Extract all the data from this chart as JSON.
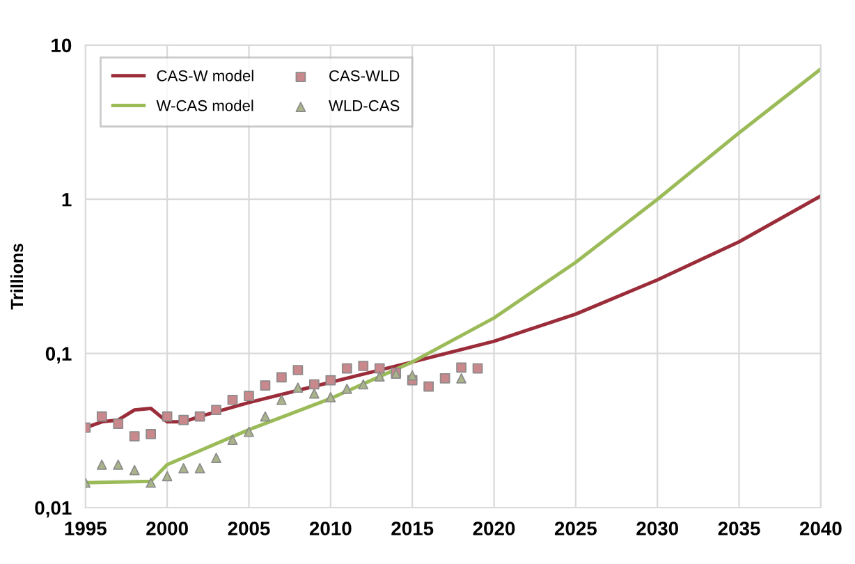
{
  "chart_data": {
    "type": "line",
    "ylabel": "Trillions",
    "log": "y",
    "grid": true,
    "legend": "top left",
    "xlim": [
      1995,
      2040
    ],
    "xticks": [
      1995,
      2000,
      2005,
      2010,
      2015,
      2020,
      2025,
      2030,
      2035,
      2040
    ],
    "ylim": [
      0.01,
      10
    ],
    "yticks": [
      {
        "value": 0.01,
        "label": "0,01"
      },
      {
        "value": 0.1,
        "label": "0,1"
      },
      1,
      10
    ],
    "series": [
      {
        "name": "CAS-W model",
        "color": "#9b2d3a",
        "marker": "none",
        "line_style": "solid",
        "x": [
          1995,
          1996,
          1997,
          1998,
          1999,
          2000,
          2001,
          2002,
          2005,
          2010,
          2015,
          2020,
          2025,
          2030,
          2035,
          2040
        ],
        "values": [
          0.033,
          0.036,
          0.037,
          0.043,
          0.044,
          0.036,
          0.036,
          0.039,
          0.048,
          0.065,
          0.088,
          0.12,
          0.18,
          0.3,
          0.53,
          1.05
        ]
      },
      {
        "name": "CAS-WLD",
        "type": "scatter",
        "color": "#c9888c",
        "marker": "square",
        "x": [
          1995,
          1996,
          1997,
          1998,
          1999,
          2000,
          2001,
          2002,
          2003,
          2004,
          2005,
          2006,
          2007,
          2008,
          2009,
          2010,
          2011,
          2012,
          2013,
          2014,
          2015,
          2016,
          2017,
          2018,
          2019
        ],
        "values": [
          0.033,
          0.039,
          0.035,
          0.029,
          0.03,
          0.039,
          0.037,
          0.039,
          0.043,
          0.05,
          0.053,
          0.062,
          0.07,
          0.078,
          0.063,
          0.067,
          0.08,
          0.083,
          0.08,
          0.075,
          0.067,
          0.061,
          0.069,
          0.081,
          0.08
        ]
      },
      {
        "name": "W-CAS model",
        "color": "#9bbb59",
        "marker": "none",
        "line_style": "solid",
        "x": [
          1995,
          1999,
          2000,
          2005,
          2010,
          2015,
          2020,
          2025,
          2030,
          2035,
          2040
        ],
        "values": [
          0.0145,
          0.0148,
          0.019,
          0.032,
          0.051,
          0.088,
          0.17,
          0.39,
          1.0,
          2.7,
          7
        ]
      },
      {
        "name": "WLD-CAS",
        "type": "scatter",
        "color": "#a9b48a",
        "marker": "triangle",
        "x": [
          1995,
          1996,
          1997,
          1998,
          1999,
          2000,
          2001,
          2002,
          2003,
          2004,
          2005,
          2006,
          2007,
          2008,
          2009,
          2010,
          2011,
          2012,
          2013,
          2014,
          2015,
          2016,
          2017,
          2018
        ],
        "values": [
          0.0145,
          0.019,
          0.019,
          0.0175,
          0.0145,
          0.016,
          0.018,
          0.018,
          0.021,
          0.0275,
          0.031,
          0.039,
          0.05,
          0.06,
          0.055,
          0.052,
          0.059,
          0.063,
          0.071,
          0.074,
          0.072,
          null,
          null,
          0.069
        ]
      }
    ]
  }
}
